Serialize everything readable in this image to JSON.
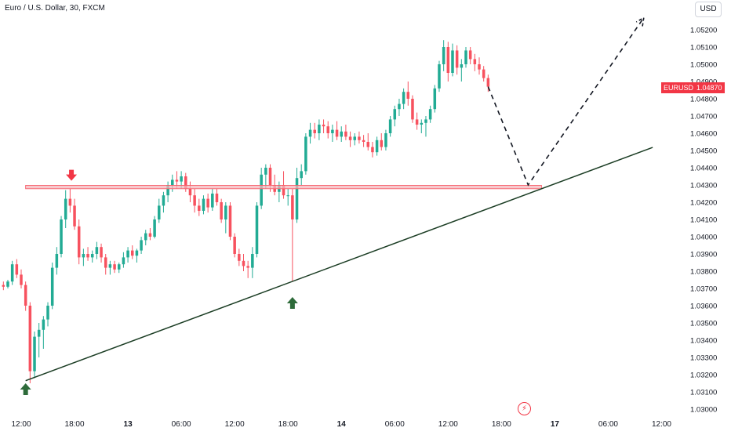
{
  "header": {
    "title": "Euro / U.S. Dollar, 30, FXCM",
    "currency_button": "USD"
  },
  "price_badge": {
    "symbol": "EURUSD",
    "price": "1.04870",
    "color": "#f23645"
  },
  "colors": {
    "up": "#26a69a",
    "down": "#f23645",
    "upBar": "#22ab94",
    "downBar": "#f7525f",
    "zone_fill": "#f4b6bb",
    "zone_stroke": "#f7525f",
    "trendline": "#1b3d24",
    "arrow_green": "#2e6b3a",
    "arrow_red": "#f23645"
  },
  "icons": [
    "arrow-down-icon",
    "arrow-up-icon",
    "lightning-icon"
  ],
  "chart_data": {
    "type": "candlestick",
    "title": "Euro / U.S. Dollar, 30, FXCM",
    "ylim": [
      1.03,
      1.0535
    ],
    "y_ticks": [
      "1.05200",
      "1.05100",
      "1.05000",
      "1.04900",
      "1.04800",
      "1.04700",
      "1.04600",
      "1.04500",
      "1.04400",
      "1.04300",
      "1.04200",
      "1.04100",
      "1.04000",
      "1.03900",
      "1.03800",
      "1.03700",
      "1.03600",
      "1.03500",
      "1.03400",
      "1.03300",
      "1.03200",
      "1.03100",
      "1.03000"
    ],
    "x_ticks": [
      {
        "label": "12:00",
        "t": 0
      },
      {
        "label": "18:00",
        "t": 12
      },
      {
        "label": "13",
        "t": 24
      },
      {
        "label": "06:00",
        "t": 36
      },
      {
        "label": "12:00",
        "t": 48
      },
      {
        "label": "18:00",
        "t": 60
      },
      {
        "label": "14",
        "t": 72
      },
      {
        "label": "06:00",
        "t": 84
      },
      {
        "label": "12:00",
        "t": 96
      },
      {
        "label": "18:00",
        "t": 108
      },
      {
        "label": "17",
        "t": 120
      },
      {
        "label": "06:00",
        "t": 132
      },
      {
        "label": "12:00",
        "t": 144
      }
    ],
    "bar_width_units": 0.62,
    "candles": [
      [
        -4,
        1.0372,
        1.0374,
        1.0369,
        1.0371
      ],
      [
        -3,
        1.0371,
        1.0375,
        1.037,
        1.0374
      ],
      [
        -2,
        1.0374,
        1.0386,
        1.0372,
        1.0384
      ],
      [
        -1,
        1.0384,
        1.0387,
        1.0376,
        1.0378
      ],
      [
        0,
        1.0378,
        1.0381,
        1.037,
        1.0372
      ],
      [
        1,
        1.0372,
        1.0374,
        1.0357,
        1.036
      ],
      [
        2,
        1.036,
        1.0362,
        1.0315,
        1.0322
      ],
      [
        3,
        1.0322,
        1.0345,
        1.0318,
        1.0342
      ],
      [
        4,
        1.0342,
        1.035,
        1.033,
        1.0346
      ],
      [
        5,
        1.0346,
        1.0354,
        1.0335,
        1.0352
      ],
      [
        6,
        1.0352,
        1.0362,
        1.0348,
        1.036
      ],
      [
        7,
        1.036,
        1.0385,
        1.0358,
        1.0382
      ],
      [
        8,
        1.0382,
        1.0394,
        1.0378,
        1.039
      ],
      [
        9,
        1.039,
        1.0412,
        1.0388,
        1.041
      ],
      [
        10,
        1.041,
        1.0427,
        1.0405,
        1.0422
      ],
      [
        11,
        1.0422,
        1.0428,
        1.0414,
        1.0418
      ],
      [
        12,
        1.0418,
        1.0422,
        1.0404,
        1.0406
      ],
      [
        13,
        1.0406,
        1.041,
        1.0384,
        1.0388
      ],
      [
        14,
        1.0388,
        1.0393,
        1.0383,
        1.039
      ],
      [
        15,
        1.039,
        1.0394,
        1.0386,
        1.0388
      ],
      [
        16,
        1.0388,
        1.0392,
        1.0385,
        1.039
      ],
      [
        17,
        1.039,
        1.0397,
        1.0387,
        1.0394
      ],
      [
        18,
        1.0394,
        1.0396,
        1.0385,
        1.0388
      ],
      [
        19,
        1.0388,
        1.039,
        1.0378,
        1.0382
      ],
      [
        20,
        1.0382,
        1.0386,
        1.0378,
        1.0384
      ],
      [
        21,
        1.0384,
        1.0386,
        1.0379,
        1.0381
      ],
      [
        22,
        1.0381,
        1.0385,
        1.0379,
        1.0384
      ],
      [
        23,
        1.0384,
        1.0391,
        1.0382,
        1.0388
      ],
      [
        24,
        1.0388,
        1.0394,
        1.0385,
        1.0392
      ],
      [
        25,
        1.0392,
        1.0395,
        1.0387,
        1.0389
      ],
      [
        26,
        1.0389,
        1.0393,
        1.0385,
        1.0392
      ],
      [
        27,
        1.0392,
        1.04,
        1.039,
        1.0398
      ],
      [
        28,
        1.0398,
        1.0404,
        1.0395,
        1.0402
      ],
      [
        29,
        1.0402,
        1.0405,
        1.0398,
        1.04
      ],
      [
        30,
        1.04,
        1.0412,
        1.0399,
        1.041
      ],
      [
        31,
        1.041,
        1.0422,
        1.0408,
        1.0418
      ],
      [
        32,
        1.0418,
        1.0426,
        1.0414,
        1.0424
      ],
      [
        33,
        1.0424,
        1.0432,
        1.042,
        1.043
      ],
      [
        34,
        1.043,
        1.0436,
        1.0426,
        1.0433
      ],
      [
        35,
        1.0433,
        1.0438,
        1.0428,
        1.0432
      ],
      [
        36,
        1.0432,
        1.0438,
        1.0428,
        1.0435
      ],
      [
        37,
        1.0435,
        1.0437,
        1.0426,
        1.0428
      ],
      [
        38,
        1.0428,
        1.0432,
        1.042,
        1.0424
      ],
      [
        39,
        1.0424,
        1.0428,
        1.0414,
        1.0418
      ],
      [
        40,
        1.0418,
        1.0422,
        1.0412,
        1.0415
      ],
      [
        41,
        1.0415,
        1.0424,
        1.0413,
        1.0422
      ],
      [
        42,
        1.0422,
        1.0425,
        1.0414,
        1.0417
      ],
      [
        43,
        1.0417,
        1.0428,
        1.0415,
        1.0425
      ],
      [
        44,
        1.0425,
        1.0428,
        1.0418,
        1.042
      ],
      [
        45,
        1.042,
        1.0422,
        1.0408,
        1.041
      ],
      [
        46,
        1.041,
        1.042,
        1.0402,
        1.0418
      ],
      [
        47,
        1.0418,
        1.042,
        1.0398,
        1.04
      ],
      [
        48,
        1.04,
        1.0402,
        1.0388,
        1.039
      ],
      [
        49,
        1.039,
        1.0393,
        1.0383,
        1.0386
      ],
      [
        50,
        1.0386,
        1.039,
        1.038,
        1.0383
      ],
      [
        51,
        1.0383,
        1.0386,
        1.0376,
        1.0382
      ],
      [
        52,
        1.0382,
        1.0394,
        1.0376,
        1.039
      ],
      [
        53,
        1.039,
        1.042,
        1.0388,
        1.0418
      ],
      [
        54,
        1.0418,
        1.044,
        1.0416,
        1.0436
      ],
      [
        55,
        1.0436,
        1.0442,
        1.0428,
        1.044
      ],
      [
        56,
        1.044,
        1.0442,
        1.0426,
        1.043
      ],
      [
        57,
        1.043,
        1.0436,
        1.0424,
        1.0426
      ],
      [
        58,
        1.0426,
        1.0432,
        1.042,
        1.043
      ],
      [
        59,
        1.043,
        1.0438,
        1.0422,
        1.0424
      ],
      [
        60,
        1.0424,
        1.0428,
        1.0418,
        1.0424
      ],
      [
        61,
        1.0424,
        1.0428,
        1.0374,
        1.041
      ],
      [
        62,
        1.041,
        1.044,
        1.0408,
        1.0434
      ],
      [
        63,
        1.0434,
        1.0442,
        1.043,
        1.0438
      ],
      [
        64,
        1.0438,
        1.046,
        1.0436,
        1.0458
      ],
      [
        65,
        1.0458,
        1.0466,
        1.0454,
        1.0462
      ],
      [
        66,
        1.0462,
        1.0466,
        1.0457,
        1.046
      ],
      [
        67,
        1.046,
        1.0468,
        1.0456,
        1.0465
      ],
      [
        68,
        1.0465,
        1.0468,
        1.046,
        1.0464
      ],
      [
        69,
        1.0464,
        1.0467,
        1.0457,
        1.046
      ],
      [
        70,
        1.046,
        1.0465,
        1.0455,
        1.0462
      ],
      [
        71,
        1.0462,
        1.0467,
        1.0456,
        1.0458
      ],
      [
        72,
        1.0458,
        1.0464,
        1.0455,
        1.0461
      ],
      [
        73,
        1.0461,
        1.0465,
        1.0456,
        1.0458
      ],
      [
        74,
        1.0458,
        1.0461,
        1.0452,
        1.0456
      ],
      [
        75,
        1.0456,
        1.046,
        1.0453,
        1.0458
      ],
      [
        76,
        1.0458,
        1.0461,
        1.0454,
        1.0456
      ],
      [
        77,
        1.0456,
        1.0459,
        1.0452,
        1.0455
      ],
      [
        78,
        1.0455,
        1.046,
        1.045,
        1.0452
      ],
      [
        79,
        1.0452,
        1.0455,
        1.0446,
        1.0449
      ],
      [
        80,
        1.0449,
        1.0458,
        1.0447,
        1.0456
      ],
      [
        81,
        1.0456,
        1.046,
        1.045,
        1.0452
      ],
      [
        82,
        1.0452,
        1.0462,
        1.045,
        1.046
      ],
      [
        83,
        1.046,
        1.047,
        1.0458,
        1.0468
      ],
      [
        84,
        1.0468,
        1.0476,
        1.0464,
        1.0474
      ],
      [
        85,
        1.0474,
        1.048,
        1.047,
        1.0477
      ],
      [
        86,
        1.0477,
        1.0486,
        1.0474,
        1.0484
      ],
      [
        87,
        1.0484,
        1.049,
        1.0476,
        1.048
      ],
      [
        88,
        1.048,
        1.0482,
        1.0466,
        1.0468
      ],
      [
        89,
        1.0468,
        1.0472,
        1.0462,
        1.0465
      ],
      [
        90,
        1.0465,
        1.0468,
        1.046,
        1.0466
      ],
      [
        91,
        1.0466,
        1.047,
        1.0458,
        1.0468
      ],
      [
        92,
        1.0468,
        1.0476,
        1.0466,
        1.0474
      ],
      [
        93,
        1.0474,
        1.0488,
        1.0472,
        1.0486
      ],
      [
        94,
        1.0486,
        1.0502,
        1.0484,
        1.05
      ],
      [
        95,
        1.05,
        1.0514,
        1.0496,
        1.051
      ],
      [
        96,
        1.051,
        1.0513,
        1.049,
        1.0495
      ],
      [
        97,
        1.0495,
        1.0512,
        1.0493,
        1.0508
      ],
      [
        98,
        1.0508,
        1.0511,
        1.0494,
        1.0498
      ],
      [
        99,
        1.0498,
        1.0503,
        1.049,
        1.05
      ],
      [
        100,
        1.05,
        1.051,
        1.0498,
        1.0508
      ],
      [
        101,
        1.0508,
        1.051,
        1.05,
        1.0503
      ],
      [
        102,
        1.0503,
        1.0506,
        1.0496,
        1.05
      ],
      [
        103,
        1.05,
        1.0504,
        1.0494,
        1.0497
      ],
      [
        104,
        1.0497,
        1.0499,
        1.049,
        1.0492
      ],
      [
        105,
        1.0492,
        1.0494,
        1.0484,
        1.0487
      ]
    ],
    "annotations": {
      "resistance_zone": {
        "t0": 1,
        "t1": 117,
        "y0": 1.04278,
        "y1": 1.04298
      },
      "trendline": {
        "t0": 1,
        "y0": 1.03165,
        "t1": 142,
        "y1": 1.04518
      },
      "projection_path": [
        [
          105,
          1.0487
        ],
        [
          114,
          1.043
        ],
        [
          140,
          1.0527
        ]
      ],
      "arrow_down": {
        "t": 11.3,
        "y": 1.0432
      },
      "arrow_up_1": {
        "t": 1,
        "y": 1.0315
      },
      "arrow_up_2": {
        "t": 61,
        "y": 1.0365
      }
    }
  }
}
